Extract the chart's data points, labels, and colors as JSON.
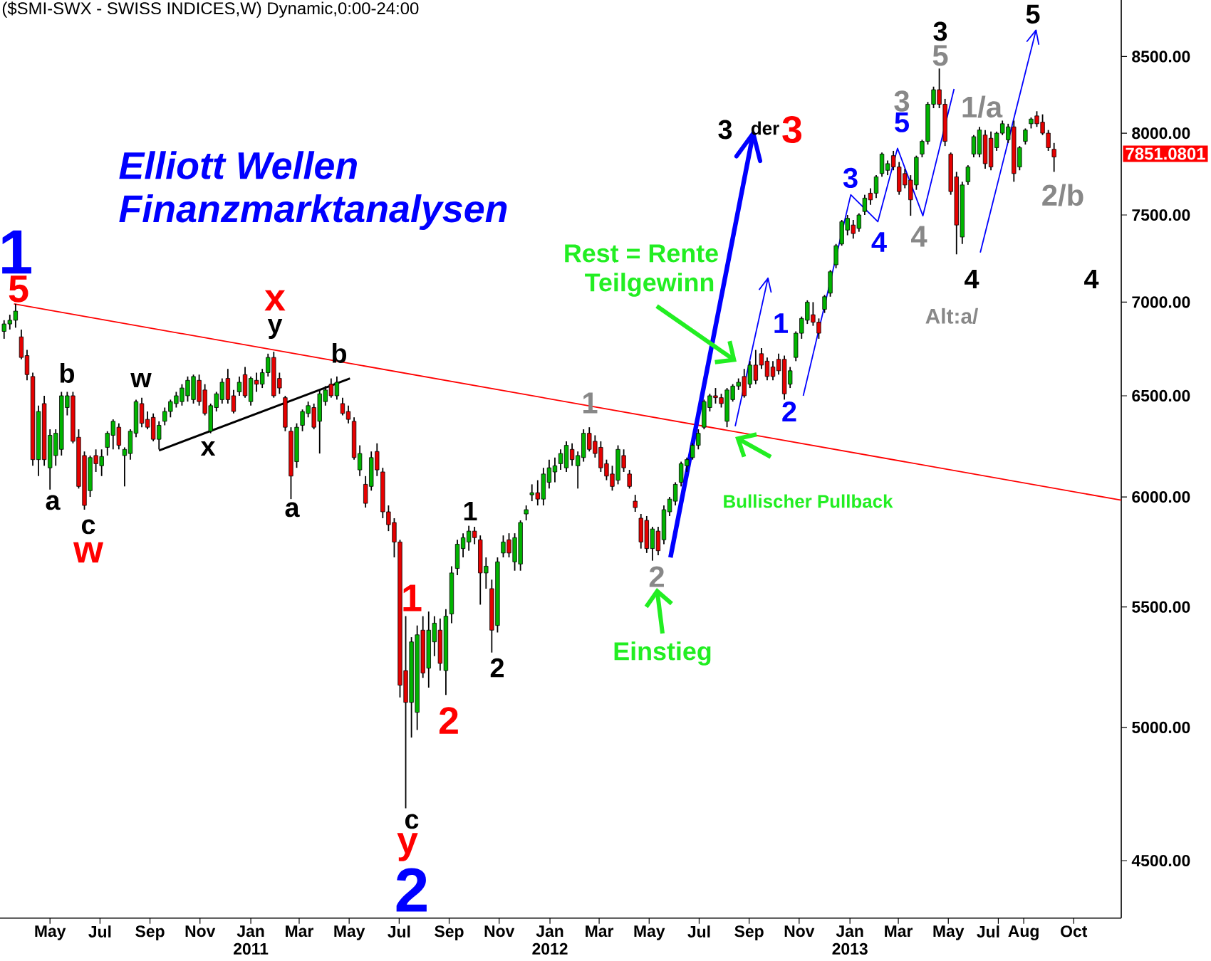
{
  "chart_data": {
    "type": "candlestick",
    "title": "($SMI-SWX - SWISS INDICES,W) Dynamic,0:00-24:00",
    "log": true,
    "xlim": [
      "2010-03-31",
      "2013-12-28"
    ],
    "ylim": [
      4300,
      8890
    ],
    "xticks": [
      {
        "value": "2010-05-31",
        "label": "May"
      },
      {
        "value": "2010-07-31",
        "label": "Jul"
      },
      {
        "value": "2010-09-30",
        "label": "Sep"
      },
      {
        "value": "2010-11-30",
        "label": "Nov"
      },
      {
        "value": "2011-01-31",
        "label": "Jan 2011"
      },
      {
        "value": "2011-03-31",
        "label": "Mar"
      },
      {
        "value": "2011-05-31",
        "label": "May"
      },
      {
        "value": "2011-07-31",
        "label": "Jul"
      },
      {
        "value": "2011-09-30",
        "label": "Sep"
      },
      {
        "value": "2011-11-30",
        "label": "Nov"
      },
      {
        "value": "2012-01-31",
        "label": "Jan 2012"
      },
      {
        "value": "2012-03-31",
        "label": "Mar"
      },
      {
        "value": "2012-05-31",
        "label": "May"
      },
      {
        "value": "2012-07-31",
        "label": "Jul"
      },
      {
        "value": "2012-09-30",
        "label": "Sep"
      },
      {
        "value": "2012-11-30",
        "label": "Nov"
      },
      {
        "value": "2013-01-31",
        "label": "Jan 2013"
      },
      {
        "value": "2013-03-31",
        "label": "Mar"
      },
      {
        "value": "2013-05-31",
        "label": "May"
      },
      {
        "value": "2013-07-31",
        "label": "Jul"
      },
      {
        "value": "2013-08-31",
        "label": "Aug"
      },
      {
        "value": "2013-10-31",
        "label": "Oct"
      }
    ],
    "yticks": [
      {
        "value": 4500,
        "label": "4500.00"
      },
      {
        "value": 5000,
        "label": "5000.00"
      },
      {
        "value": 5500,
        "label": "5500.00"
      },
      {
        "value": 6000,
        "label": "6000.00"
      },
      {
        "value": 6500,
        "label": "6500.00"
      },
      {
        "value": 7000,
        "label": "7000.00"
      },
      {
        "value": 7500,
        "label": "7500.00"
      },
      {
        "value": 8000,
        "label": "8000.00"
      },
      {
        "value": 8500,
        "label": "8500.00"
      }
    ],
    "x": [
      "2010-04-05",
      "2010-04-12",
      "2010-04-19",
      "2010-04-26",
      "2010-05-03",
      "2010-05-10",
      "2010-05-17",
      "2010-05-24",
      "2010-05-31",
      "2010-06-07",
      "2010-06-14",
      "2010-06-21",
      "2010-06-28",
      "2010-07-05",
      "2010-07-12",
      "2010-07-19",
      "2010-07-26",
      "2010-08-02",
      "2010-08-09",
      "2010-08-16",
      "2010-08-23",
      "2010-08-30",
      "2010-09-06",
      "2010-09-13",
      "2010-09-20",
      "2010-09-27",
      "2010-10-04",
      "2010-10-11",
      "2010-10-18",
      "2010-10-25",
      "2010-11-01",
      "2010-11-08",
      "2010-11-15",
      "2010-11-22",
      "2010-11-29",
      "2010-12-06",
      "2010-12-13",
      "2010-12-20",
      "2010-12-27",
      "2011-01-03",
      "2011-01-10",
      "2011-01-17",
      "2011-01-24",
      "2011-01-31",
      "2011-02-07",
      "2011-02-14",
      "2011-02-21",
      "2011-02-28",
      "2011-03-07",
      "2011-03-14",
      "2011-03-21",
      "2011-03-28",
      "2011-04-04",
      "2011-04-11",
      "2011-04-18",
      "2011-04-25",
      "2011-05-02",
      "2011-05-09",
      "2011-05-16",
      "2011-05-23",
      "2011-05-30",
      "2011-06-06",
      "2011-06-13",
      "2011-06-20",
      "2011-06-27",
      "2011-07-04",
      "2011-07-11",
      "2011-07-18",
      "2011-07-25",
      "2011-08-01",
      "2011-08-08",
      "2011-08-15",
      "2011-08-22",
      "2011-08-29",
      "2011-09-05",
      "2011-09-12",
      "2011-09-19",
      "2011-09-26",
      "2011-10-03",
      "2011-10-10",
      "2011-10-17",
      "2011-10-24",
      "2011-10-31",
      "2011-11-07",
      "2011-11-14",
      "2011-11-21",
      "2011-11-28",
      "2011-12-05",
      "2011-12-12",
      "2011-12-19",
      "2011-12-26",
      "2012-01-02",
      "2012-01-09",
      "2012-01-16",
      "2012-01-23",
      "2012-01-30",
      "2012-02-06",
      "2012-02-13",
      "2012-02-20",
      "2012-02-27",
      "2012-03-05",
      "2012-03-12",
      "2012-03-19",
      "2012-03-26",
      "2012-04-02",
      "2012-04-09",
      "2012-04-16",
      "2012-04-23",
      "2012-04-30",
      "2012-05-07",
      "2012-05-14",
      "2012-05-21",
      "2012-05-28",
      "2012-06-04",
      "2012-06-11",
      "2012-06-18",
      "2012-06-25",
      "2012-07-02",
      "2012-07-09",
      "2012-07-16",
      "2012-07-23",
      "2012-07-30",
      "2012-08-06",
      "2012-08-13",
      "2012-08-20",
      "2012-08-27",
      "2012-09-03",
      "2012-09-10",
      "2012-09-17",
      "2012-09-24",
      "2012-10-01",
      "2012-10-08",
      "2012-10-15",
      "2012-10-22",
      "2012-10-29",
      "2012-11-05",
      "2012-11-12",
      "2012-11-19",
      "2012-11-26",
      "2012-12-03",
      "2012-12-10",
      "2012-12-17",
      "2012-12-24",
      "2012-12-31",
      "2013-01-07",
      "2013-01-14",
      "2013-01-21",
      "2013-01-28",
      "2013-02-04",
      "2013-02-11",
      "2013-02-18",
      "2013-02-25",
      "2013-03-04",
      "2013-03-11",
      "2013-03-18",
      "2013-03-25",
      "2013-04-01",
      "2013-04-08",
      "2013-04-15",
      "2013-04-22",
      "2013-04-29",
      "2013-05-06",
      "2013-05-13",
      "2013-05-20",
      "2013-05-27",
      "2013-06-03",
      "2013-06-10",
      "2013-06-17",
      "2013-06-24",
      "2013-07-01",
      "2013-07-08",
      "2013-07-15",
      "2013-07-22",
      "2013-07-29",
      "2013-08-05",
      "2013-08-12",
      "2013-08-19",
      "2013-08-26",
      "2013-09-02",
      "2013-09-09",
      "2013-09-16",
      "2013-09-23",
      "2013-09-30",
      "2013-10-07"
    ],
    "ohlc": [
      [
        6840,
        6900,
        6800,
        6880
      ],
      [
        6880,
        6930,
        6850,
        6900
      ],
      [
        6900,
        6990,
        6860,
        6950
      ],
      [
        6810,
        6850,
        6690,
        6700
      ],
      [
        6710,
        6740,
        6580,
        6610
      ],
      [
        6600,
        6620,
        6150,
        6180
      ],
      [
        6180,
        6450,
        6100,
        6420
      ],
      [
        6460,
        6500,
        6150,
        6180
      ],
      [
        6140,
        6330,
        6035,
        6300
      ],
      [
        6200,
        6330,
        6150,
        6310
      ],
      [
        6230,
        6520,
        6200,
        6500
      ],
      [
        6440,
        6520,
        6400,
        6500
      ],
      [
        6500,
        6520,
        6260,
        6270
      ],
      [
        6290,
        6330,
        6040,
        6050
      ],
      [
        6200,
        6220,
        5940,
        5960
      ],
      [
        6030,
        6200,
        6000,
        6190
      ],
      [
        6200,
        6230,
        6120,
        6160
      ],
      [
        6150,
        6230,
        6100,
        6195
      ],
      [
        6240,
        6320,
        6200,
        6310
      ],
      [
        6300,
        6380,
        6230,
        6370
      ],
      [
        6340,
        6360,
        6230,
        6250
      ],
      [
        6200,
        6240,
        6050,
        6230
      ],
      [
        6210,
        6330,
        6180,
        6320
      ],
      [
        6310,
        6480,
        6290,
        6470
      ],
      [
        6460,
        6490,
        6340,
        6360
      ],
      [
        6380,
        6420,
        6330,
        6340
      ],
      [
        6390,
        6410,
        6270,
        6280
      ],
      [
        6280,
        6370,
        6230,
        6350
      ],
      [
        6370,
        6440,
        6350,
        6420
      ],
      [
        6420,
        6480,
        6390,
        6470
      ],
      [
        6460,
        6520,
        6440,
        6500
      ],
      [
        6470,
        6560,
        6450,
        6540
      ],
      [
        6500,
        6600,
        6470,
        6580
      ],
      [
        6480,
        6610,
        6460,
        6600
      ],
      [
        6580,
        6610,
        6450,
        6470
      ],
      [
        6530,
        6560,
        6400,
        6410
      ],
      [
        6320,
        6460,
        6310,
        6450
      ],
      [
        6440,
        6520,
        6420,
        6510
      ],
      [
        6480,
        6590,
        6460,
        6570
      ],
      [
        6590,
        6640,
        6460,
        6480
      ],
      [
        6500,
        6530,
        6410,
        6420
      ],
      [
        6520,
        6600,
        6500,
        6570
      ],
      [
        6610,
        6650,
        6490,
        6500
      ],
      [
        6470,
        6600,
        6450,
        6590
      ],
      [
        6580,
        6620,
        6520,
        6560
      ],
      [
        6560,
        6640,
        6540,
        6620
      ],
      [
        6620,
        6720,
        6600,
        6700
      ],
      [
        6700,
        6730,
        6490,
        6500
      ],
      [
        6590,
        6620,
        6510,
        6540
      ],
      [
        6490,
        6500,
        6320,
        6340
      ],
      [
        6320,
        6340,
        5990,
        6100
      ],
      [
        6170,
        6360,
        6140,
        6340
      ],
      [
        6350,
        6430,
        6320,
        6420
      ],
      [
        6410,
        6470,
        6390,
        6450
      ],
      [
        6440,
        6460,
        6330,
        6340
      ],
      [
        6370,
        6530,
        6210,
        6510
      ],
      [
        6470,
        6550,
        6450,
        6530
      ],
      [
        6560,
        6590,
        6490,
        6500
      ],
      [
        6500,
        6600,
        6480,
        6570
      ],
      [
        6460,
        6490,
        6400,
        6410
      ],
      [
        6420,
        6450,
        6360,
        6380
      ],
      [
        6370,
        6390,
        6180,
        6190
      ],
      [
        6130,
        6250,
        6100,
        6210
      ],
      [
        6060,
        6100,
        5950,
        5970
      ],
      [
        6050,
        6220,
        6030,
        6190
      ],
      [
        6220,
        6260,
        6100,
        6130
      ],
      [
        6120,
        6140,
        5900,
        5930
      ],
      [
        5930,
        5960,
        5840,
        5870
      ],
      [
        5880,
        5900,
        5720,
        5790
      ],
      [
        5790,
        5800,
        5120,
        5170
      ],
      [
        5230,
        5460,
        4690,
        5100
      ],
      [
        5100,
        5370,
        4960,
        5350
      ],
      [
        5060,
        5420,
        4990,
        5380
      ],
      [
        5400,
        5460,
        5200,
        5220
      ],
      [
        5240,
        5480,
        5160,
        5400
      ],
      [
        5350,
        5460,
        5290,
        5430
      ],
      [
        5400,
        5450,
        5230,
        5260
      ],
      [
        5230,
        5490,
        5130,
        5460
      ],
      [
        5470,
        5680,
        5430,
        5650
      ],
      [
        5670,
        5800,
        5640,
        5780
      ],
      [
        5760,
        5830,
        5720,
        5810
      ],
      [
        5790,
        5865,
        5750,
        5840
      ],
      [
        5840,
        5860,
        5780,
        5810
      ],
      [
        5800,
        5820,
        5510,
        5650
      ],
      [
        5650,
        5720,
        5580,
        5680
      ],
      [
        5580,
        5620,
        5305,
        5400
      ],
      [
        5420,
        5720,
        5390,
        5700
      ],
      [
        5740,
        5820,
        5720,
        5790
      ],
      [
        5800,
        5830,
        5720,
        5740
      ],
      [
        5700,
        5830,
        5660,
        5810
      ],
      [
        5690,
        5890,
        5660,
        5880
      ],
      [
        5920,
        5960,
        5890,
        5940
      ],
      [
        6010,
        6060,
        5980,
        6020
      ],
      [
        6020,
        6080,
        5960,
        5990
      ],
      [
        5990,
        6140,
        5960,
        6110
      ],
      [
        6070,
        6180,
        6040,
        6140
      ],
      [
        6120,
        6190,
        6070,
        6150
      ],
      [
        6160,
        6230,
        6130,
        6210
      ],
      [
        6140,
        6270,
        6120,
        6250
      ],
      [
        6230,
        6260,
        6150,
        6180
      ],
      [
        6150,
        6220,
        6040,
        6200
      ],
      [
        6190,
        6330,
        6170,
        6310
      ],
      [
        6310,
        6340,
        6220,
        6230
      ],
      [
        6270,
        6300,
        6190,
        6210
      ],
      [
        6240,
        6270,
        6120,
        6140
      ],
      [
        6160,
        6180,
        6080,
        6100
      ],
      [
        6110,
        6150,
        6030,
        6050
      ],
      [
        6080,
        6250,
        6060,
        6230
      ],
      [
        6200,
        6230,
        6120,
        6140
      ],
      [
        6110,
        6130,
        6040,
        6050
      ],
      [
        5980,
        6010,
        5930,
        5950
      ],
      [
        5900,
        5920,
        5760,
        5790
      ],
      [
        5890,
        5910,
        5740,
        5760
      ],
      [
        5760,
        5860,
        5705,
        5850
      ],
      [
        5840,
        5860,
        5730,
        5750
      ],
      [
        5800,
        5960,
        5780,
        5940
      ],
      [
        5930,
        6000,
        5910,
        5990
      ],
      [
        5980,
        6070,
        5960,
        6060
      ],
      [
        6070,
        6170,
        6050,
        6160
      ],
      [
        6150,
        6190,
        6120,
        6180
      ],
      [
        6190,
        6260,
        6180,
        6250
      ],
      [
        6250,
        6330,
        6230,
        6310
      ],
      [
        6340,
        6480,
        6330,
        6470
      ],
      [
        6440,
        6510,
        6420,
        6500
      ],
      [
        6500,
        6540,
        6460,
        6490
      ],
      [
        6490,
        6510,
        6440,
        6460
      ],
      [
        6370,
        6540,
        6340,
        6530
      ],
      [
        6480,
        6560,
        6470,
        6550
      ],
      [
        6550,
        6590,
        6530,
        6570
      ],
      [
        6600,
        6640,
        6490,
        6500
      ],
      [
        6560,
        6680,
        6540,
        6660
      ],
      [
        6660,
        6740,
        6560,
        6580
      ],
      [
        6720,
        6750,
        6640,
        6660
      ],
      [
        6680,
        6700,
        6580,
        6600
      ],
      [
        6650,
        6680,
        6580,
        6600
      ],
      [
        6690,
        6720,
        6610,
        6630
      ],
      [
        6690,
        6710,
        6480,
        6510
      ],
      [
        6560,
        6650,
        6540,
        6630
      ],
      [
        6700,
        6840,
        6680,
        6830
      ],
      [
        6830,
        6920,
        6800,
        6910
      ],
      [
        6900,
        7010,
        6880,
        7000
      ],
      [
        6930,
        7000,
        6870,
        6890
      ],
      [
        6890,
        6910,
        6800,
        6830
      ],
      [
        6960,
        7040,
        6940,
        7030
      ],
      [
        7050,
        7180,
        7030,
        7170
      ],
      [
        7210,
        7330,
        7190,
        7320
      ],
      [
        7330,
        7470,
        7320,
        7460
      ],
      [
        7410,
        7500,
        7380,
        7480
      ],
      [
        7440,
        7470,
        7360,
        7390
      ],
      [
        7420,
        7510,
        7400,
        7500
      ],
      [
        7520,
        7620,
        7500,
        7600
      ],
      [
        7630,
        7660,
        7560,
        7590
      ],
      [
        7630,
        7740,
        7600,
        7730
      ],
      [
        7750,
        7880,
        7730,
        7870
      ],
      [
        7770,
        7830,
        7740,
        7810
      ],
      [
        7860,
        7890,
        7770,
        7790
      ],
      [
        7790,
        7820,
        7620,
        7640
      ],
      [
        7750,
        7780,
        7660,
        7680
      ],
      [
        7710,
        7740,
        7495,
        7590
      ],
      [
        7680,
        7860,
        7650,
        7850
      ],
      [
        7870,
        7960,
        7850,
        7950
      ],
      [
        7950,
        8200,
        7930,
        8185
      ],
      [
        8185,
        8300,
        8160,
        8280
      ],
      [
        8280,
        8420,
        8160,
        8185
      ],
      [
        8185,
        8220,
        7920,
        7950
      ],
      [
        7870,
        7880,
        7620,
        7640
      ],
      [
        7730,
        7760,
        7270,
        7440
      ],
      [
        7370,
        7700,
        7330,
        7680
      ],
      [
        7700,
        7800,
        7680,
        7790
      ],
      [
        7870,
        7990,
        7850,
        7980
      ],
      [
        7870,
        8040,
        7850,
        8020
      ],
      [
        7990,
        8020,
        7780,
        7810
      ],
      [
        7970,
        8010,
        7770,
        7790
      ],
      [
        7910,
        8010,
        7890,
        8000
      ],
      [
        8000,
        8080,
        7990,
        8060
      ],
      [
        7960,
        8060,
        7940,
        8040
      ],
      [
        8040,
        8080,
        7700,
        7750
      ],
      [
        7790,
        7920,
        7770,
        7910
      ],
      [
        7950,
        8030,
        7930,
        8020
      ],
      [
        8060,
        8100,
        8030,
        8090
      ],
      [
        8110,
        8140,
        8040,
        8060
      ],
      [
        8070,
        8120,
        7990,
        8000
      ],
      [
        8000,
        8020,
        7890,
        7910
      ],
      [
        7900,
        7940,
        7760,
        7851.0801
      ]
    ],
    "series": [
      {
        "type": "line",
        "x": [
          "2010-04-17",
          "2013-12-28"
        ],
        "values": [
          6990,
          5985
        ],
        "color": "#ff0000"
      },
      {
        "type": "line",
        "x": [
          "2010-10-11",
          "2011-06-01"
        ],
        "values": [
          6225,
          6590
        ],
        "color": "#000000"
      },
      {
        "type": "line",
        "x": [
          "2012-06-26",
          "2012-10-05"
        ],
        "values": [
          5720,
          8000
        ],
        "color": "#0000ff"
      },
      {
        "type": "line",
        "x": [
          "2012-09-13",
          "2012-10-23"
        ],
        "values": [
          6345,
          7135
        ],
        "color": "#0000ff"
      },
      {
        "type": "line",
        "x": [
          "2012-12-05",
          "2013-02-01",
          "2013-03-06",
          "2013-03-30",
          "2013-04-30",
          "2013-06-07"
        ],
        "values": [
          6500,
          7620,
          7460,
          7905,
          7495,
          8285
        ],
        "color": "#0000ff"
      },
      {
        "type": "line",
        "x": [
          "2013-07-09",
          "2013-09-15"
        ],
        "values": [
          7280,
          8680
        ],
        "color": "#0000ff"
      }
    ],
    "annotations": [
      "Elliott Wellen",
      "Finanzmarktanalysen",
      "1",
      "5",
      "a",
      "b",
      "c",
      "w",
      "w",
      "x",
      "x",
      "y",
      "a",
      "b",
      "1",
      "c",
      "y",
      "2",
      "2",
      "1",
      "2",
      "1",
      "2",
      "Einstieg",
      "3",
      "der",
      "3",
      "Rest = Rente",
      "Teilgewinn",
      "Bullischer Pullback",
      "1",
      "2",
      "3",
      "4",
      "5",
      "3",
      "4",
      "3",
      "5",
      "1/a",
      "4",
      "Alt:a/",
      "2/b",
      "4",
      "5",
      "7851.0801"
    ]
  }
}
